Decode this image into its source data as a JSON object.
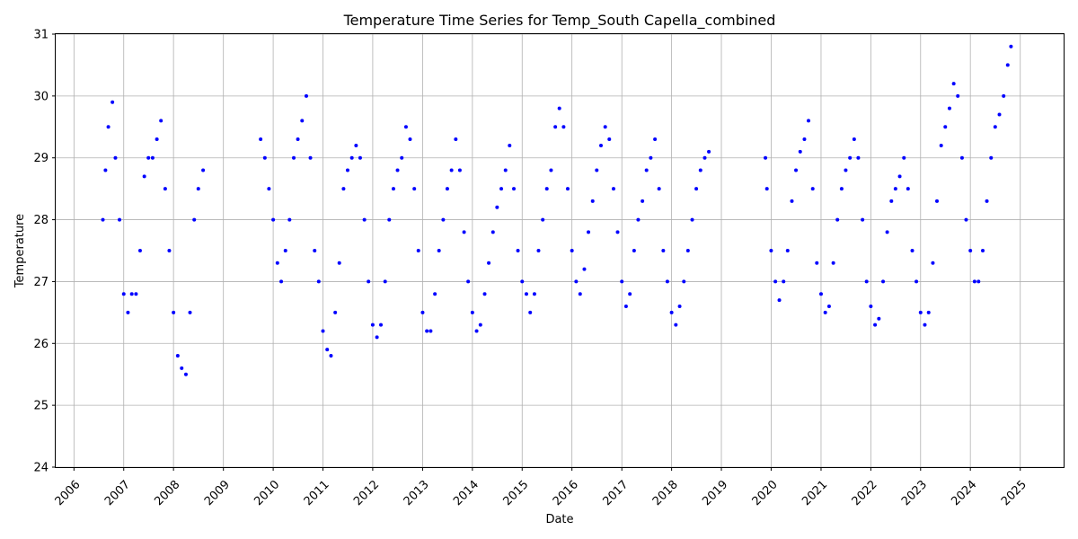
{
  "chart_data": {
    "type": "scatter",
    "title": "Temperature Time Series for Temp_South Capella_combined",
    "xlabel": "Date",
    "ylabel": "Temperature",
    "xlim": [
      "2005-08-20",
      "2025-11-15"
    ],
    "ylim": [
      24,
      31
    ],
    "x_ticks": [
      "2006",
      "2007",
      "2008",
      "2009",
      "2010",
      "2011",
      "2012",
      "2013",
      "2014",
      "2015",
      "2016",
      "2017",
      "2018",
      "2019",
      "2020",
      "2021",
      "2022",
      "2023",
      "2024",
      "2025"
    ],
    "y_ticks": [
      "24",
      "25",
      "26",
      "27",
      "28",
      "29",
      "30",
      "31"
    ],
    "grid": true,
    "marker_color": "#0000ff",
    "series": [
      {
        "x": [
          "2006-08-01",
          "2006-08-20",
          "2006-09-10",
          "2006-10-10",
          "2006-11-01",
          "2006-12-01",
          "2007-01-01",
          "2007-02-01",
          "2007-03-01",
          "2007-04-01",
          "2007-05-01",
          "2007-06-01",
          "2007-07-01",
          "2007-08-01",
          "2007-09-01",
          "2007-10-01",
          "2007-11-01",
          "2007-12-01",
          "2008-01-01",
          "2008-02-01",
          "2008-03-01",
          "2008-04-01",
          "2008-05-01",
          "2008-06-01",
          "2008-07-01",
          "2008-08-05"
        ],
        "y": [
          28.0,
          28.8,
          29.5,
          29.9,
          29.0,
          28.0,
          26.8,
          26.5,
          26.8,
          26.8,
          27.5,
          28.7,
          29.0,
          29.0,
          29.3,
          29.6,
          28.5,
          27.5,
          26.5,
          25.8,
          25.6,
          25.5,
          26.5,
          28.0,
          28.5,
          28.8
        ]
      },
      {
        "x": [
          "2009-10-01",
          "2009-11-01",
          "2009-12-01",
          "2010-01-01",
          "2010-02-01",
          "2010-03-01",
          "2010-04-01",
          "2010-05-01",
          "2010-06-01",
          "2010-07-01",
          "2010-08-01",
          "2010-09-01",
          "2010-10-01",
          "2010-11-01",
          "2010-12-01",
          "2011-01-01",
          "2011-02-01",
          "2011-03-01",
          "2011-04-01",
          "2011-05-01",
          "2011-06-01",
          "2011-07-01",
          "2011-08-01",
          "2011-09-01",
          "2011-10-01",
          "2011-11-01",
          "2011-12-01",
          "2012-01-01",
          "2012-02-01",
          "2012-03-01",
          "2012-04-01",
          "2012-05-01",
          "2012-06-01",
          "2012-07-01",
          "2012-08-01",
          "2012-09-01",
          "2012-10-01",
          "2012-11-01",
          "2012-12-01",
          "2013-01-01",
          "2013-02-01",
          "2013-03-01",
          "2013-04-01",
          "2013-05-01",
          "2013-06-01",
          "2013-07-01",
          "2013-08-01",
          "2013-09-01",
          "2013-10-01",
          "2013-11-01",
          "2013-12-01",
          "2014-01-01",
          "2014-02-01",
          "2014-03-01",
          "2014-04-01",
          "2014-05-01",
          "2014-06-01",
          "2014-07-01",
          "2014-08-01",
          "2014-09-01",
          "2014-10-01",
          "2014-11-01",
          "2014-12-01",
          "2015-01-01",
          "2015-02-01",
          "2015-03-01",
          "2015-04-01",
          "2015-05-01",
          "2015-06-01",
          "2015-07-01",
          "2015-08-01",
          "2015-09-01",
          "2015-10-01",
          "2015-11-01",
          "2015-12-01",
          "2016-01-01",
          "2016-02-01",
          "2016-03-01",
          "2016-04-01",
          "2016-05-01",
          "2016-06-01",
          "2016-07-01",
          "2016-08-01",
          "2016-09-01",
          "2016-10-01",
          "2016-11-01",
          "2016-12-01",
          "2017-01-01",
          "2017-02-01",
          "2017-03-01",
          "2017-04-01",
          "2017-05-01",
          "2017-06-01",
          "2017-07-01",
          "2017-08-01",
          "2017-09-01",
          "2017-10-01",
          "2017-11-01",
          "2017-12-01",
          "2018-01-01",
          "2018-02-01",
          "2018-03-01",
          "2018-04-01",
          "2018-05-01",
          "2018-06-01",
          "2018-07-01",
          "2018-08-01",
          "2018-09-01",
          "2018-10-01"
        ],
        "y": [
          29.3,
          29.0,
          28.5,
          28.0,
          27.3,
          27.0,
          27.5,
          28.0,
          29.0,
          29.3,
          29.6,
          30.0,
          29.0,
          27.5,
          27.0,
          26.2,
          25.9,
          25.8,
          26.5,
          27.3,
          28.5,
          28.8,
          29.0,
          29.2,
          29.0,
          28.0,
          27.0,
          26.3,
          26.1,
          26.3,
          27.0,
          28.0,
          28.5,
          28.8,
          29.0,
          29.5,
          29.3,
          28.5,
          27.5,
          26.5,
          26.2,
          26.2,
          26.8,
          27.5,
          28.0,
          28.5,
          28.8,
          29.3,
          28.8,
          27.8,
          27.0,
          26.5,
          26.2,
          26.3,
          26.8,
          27.3,
          27.8,
          28.2,
          28.5,
          28.8,
          29.2,
          28.5,
          27.5,
          27.0,
          26.8,
          26.5,
          26.8,
          27.5,
          28.0,
          28.5,
          28.8,
          29.5,
          29.8,
          29.5,
          28.5,
          27.5,
          27.0,
          26.8,
          27.2,
          27.8,
          28.3,
          28.8,
          29.2,
          29.5,
          29.3,
          28.5,
          27.8,
          27.0,
          26.6,
          26.8,
          27.5,
          28.0,
          28.3,
          28.8,
          29.0,
          29.3,
          28.5,
          27.5,
          27.0,
          26.5,
          26.3,
          26.6,
          27.0,
          27.5,
          28.0,
          28.5,
          28.8,
          29.0,
          29.1
        ]
      },
      {
        "x": [
          "2019-11-20",
          "2019-12-01",
          "2020-01-01",
          "2020-02-01",
          "2020-03-01",
          "2020-04-01",
          "2020-05-01",
          "2020-06-01",
          "2020-07-01",
          "2020-08-01",
          "2020-09-01",
          "2020-10-01",
          "2020-11-01",
          "2020-12-01",
          "2021-01-01",
          "2021-02-01",
          "2021-03-01",
          "2021-04-01",
          "2021-05-01",
          "2021-06-01",
          "2021-07-01",
          "2021-08-01",
          "2021-09-01",
          "2021-10-01",
          "2021-11-01",
          "2021-12-01",
          "2022-01-01",
          "2022-02-01",
          "2022-03-01",
          "2022-04-01",
          "2022-05-01",
          "2022-06-01",
          "2022-07-01",
          "2022-08-01",
          "2022-09-01",
          "2022-10-01",
          "2022-11-01",
          "2022-12-01",
          "2023-01-01",
          "2023-02-01",
          "2023-03-01",
          "2023-04-01",
          "2023-05-01",
          "2023-06-01",
          "2023-07-01",
          "2023-08-01",
          "2023-09-01",
          "2023-10-01",
          "2023-11-01",
          "2023-12-01",
          "2024-01-01",
          "2024-02-01",
          "2024-03-01",
          "2024-04-01",
          "2024-05-01",
          "2024-06-01",
          "2024-07-01",
          "2024-08-01",
          "2024-09-01",
          "2024-10-01",
          "2024-10-25"
        ],
        "y": [
          29.0,
          28.5,
          27.5,
          27.0,
          26.7,
          27.0,
          27.5,
          28.3,
          28.8,
          29.1,
          29.3,
          29.6,
          28.5,
          27.3,
          26.8,
          26.5,
          26.6,
          27.3,
          28.0,
          28.5,
          28.8,
          29.0,
          29.3,
          29.0,
          28.0,
          27.0,
          26.6,
          26.3,
          26.4,
          27.0,
          27.8,
          28.3,
          28.5,
          28.7,
          29.0,
          28.5,
          27.5,
          27.0,
          26.5,
          26.3,
          26.5,
          27.3,
          28.3,
          29.2,
          29.5,
          29.8,
          30.2,
          30.0,
          29.0,
          28.0,
          27.5,
          27.0,
          27.0,
          27.5,
          28.3,
          29.0,
          29.5,
          29.7,
          30.0,
          30.5,
          30.8
        ]
      }
    ]
  }
}
